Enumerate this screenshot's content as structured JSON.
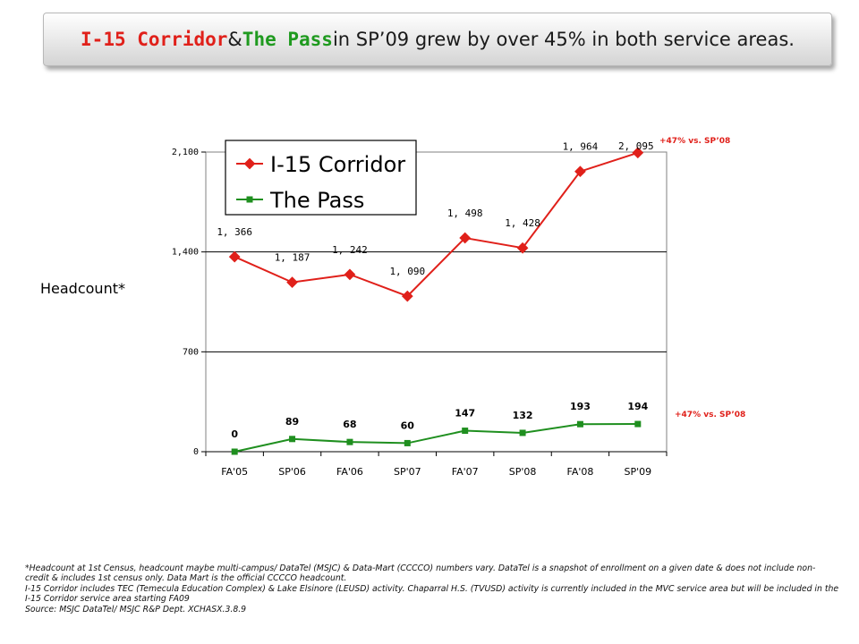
{
  "title": {
    "part1": "I-15 Corridor",
    "part2": " & ",
    "part3": "The Pass",
    "part4": " in SP’09 grew by over 45% in both service areas."
  },
  "colors": {
    "i15": "#e0201a",
    "pass": "#1f8f1f",
    "annotation": "#e0201a"
  },
  "chart_data": {
    "type": "line",
    "ylabel": "Headcount*",
    "categories": [
      "FA'05",
      "SP'06",
      "FA'06",
      "SP'07",
      "FA'07",
      "SP'08",
      "FA'08",
      "SP'09"
    ],
    "yticks": [
      "0",
      "700",
      "1,400",
      "2,100"
    ],
    "ylim": [
      0,
      2100
    ],
    "grid": "horizontal",
    "legend_position": "top-left",
    "series": [
      {
        "name": "I-15 Corridor",
        "values": [
          1366,
          1187,
          1242,
          1090,
          1498,
          1428,
          1964,
          2095
        ],
        "labels": [
          "1, 366",
          "1, 187",
          "1, 242",
          "1, 090",
          "1, 498",
          "1, 428",
          "1, 964",
          "2, 095"
        ]
      },
      {
        "name": "The Pass",
        "values": [
          0,
          89,
          68,
          60,
          147,
          132,
          193,
          194
        ],
        "labels": [
          "0",
          "89",
          "68",
          "60",
          "147",
          "132",
          "193",
          "194"
        ]
      }
    ],
    "annotations": [
      "+47% vs. SP’08",
      "+47% vs. SP’08"
    ]
  },
  "footnote": {
    "line1": "*Headcount at 1st Census, headcount maybe multi-campus/ DataTel (MSJC) & Data-Mart (CCCCO) numbers vary. DataTel is a snapshot of enrollment on a given date & does not include non-credit & includes 1st census only. Data Mart is the official CCCCO headcount.",
    "line2": "I-15 Corridor includes TEC (Temecula Education Complex) & Lake Elsinore (LEUSD) activity.  Chaparral H.S. (TVUSD) activity is currently included in the MVC service area but will be included in the I-15 Corridor service area starting FA09",
    "line3": "Source: MSJC DataTel/ MSJC R&P Dept. XCHASX.3.8.9"
  }
}
